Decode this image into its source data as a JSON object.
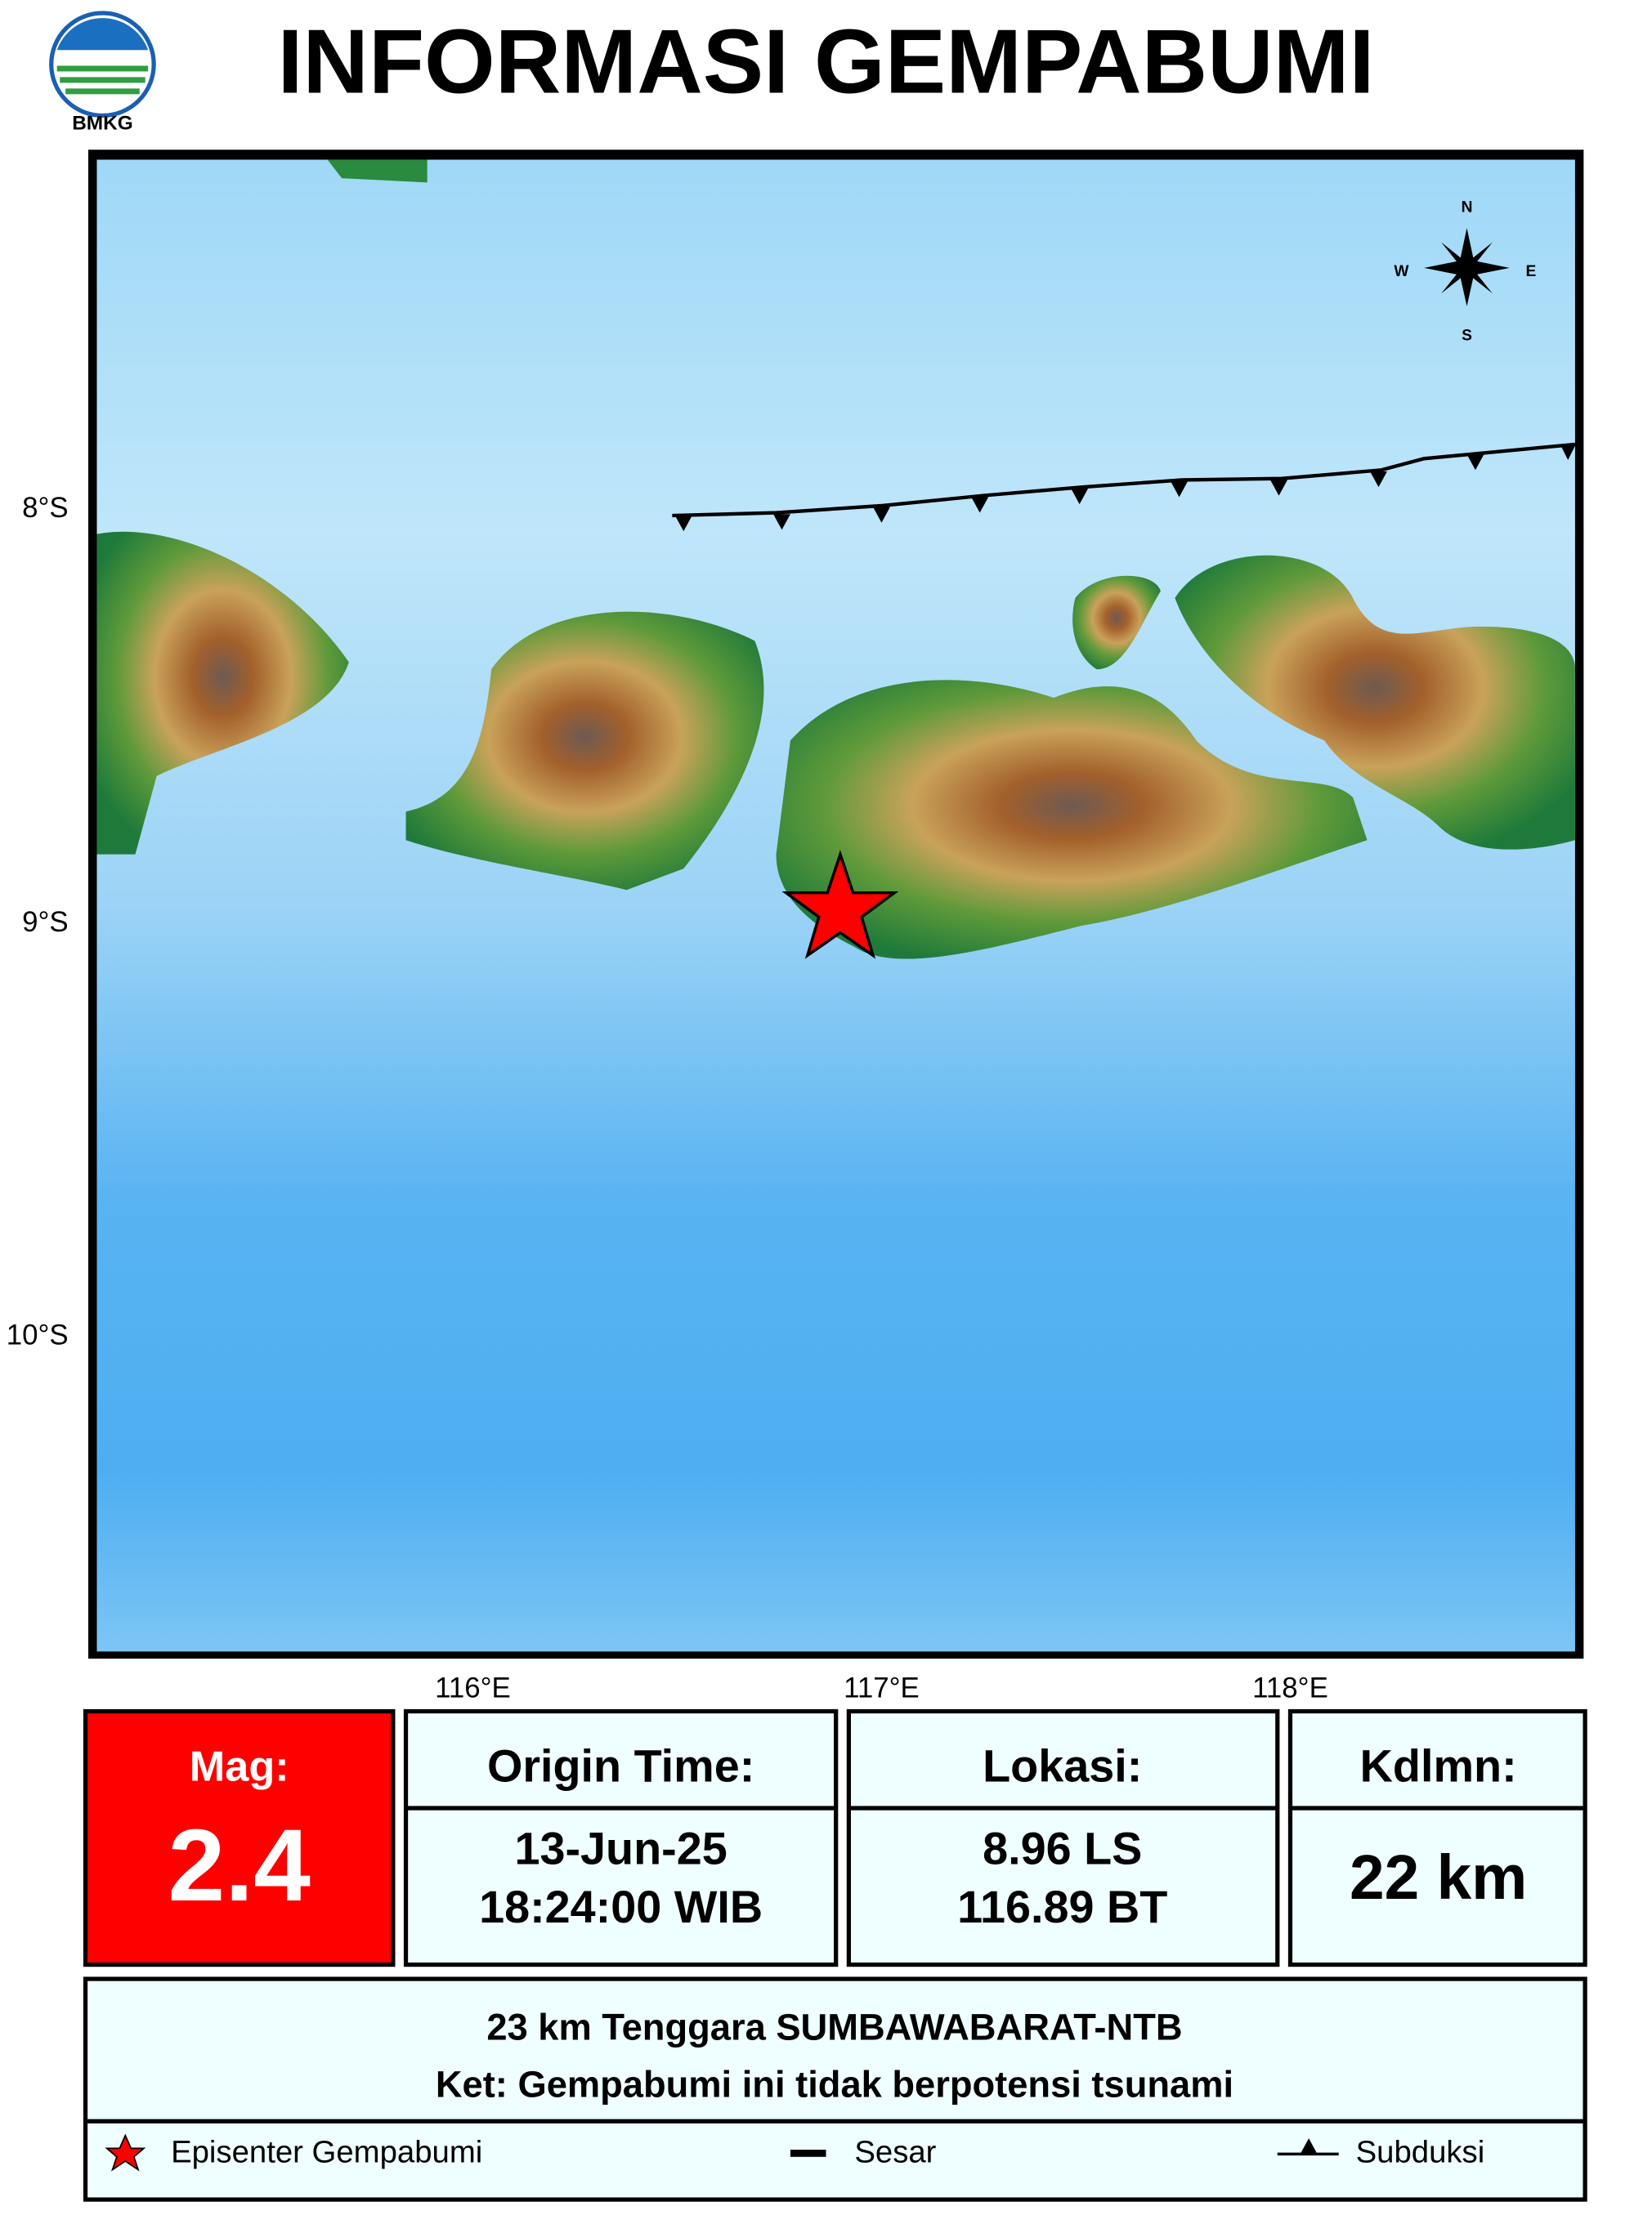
{
  "header": {
    "logo_text": "BMKG",
    "title": "INFORMASI GEMPABUMI"
  },
  "map": {
    "lat_labels": [
      "8°S",
      "9°S",
      "10°S"
    ],
    "lon_labels": [
      "116°E",
      "117°E",
      "118°E"
    ],
    "compass": {
      "n": "N",
      "e": "E",
      "s": "S",
      "w": "W"
    }
  },
  "info": {
    "mag_label": "Mag:",
    "mag_value": "2.4",
    "origin_label": "Origin Time:",
    "date": "13-Jun-25",
    "time": "18:24:00 WIB",
    "location_label": "Lokasi:",
    "latitude": "8.96 LS",
    "longitude": "116.89 BT",
    "depth_label": "Kdlmn:",
    "depth": "22 km"
  },
  "description": {
    "place": "23 km Tenggara SUMBAWABARAT-NTB",
    "note": "Ket: Gempabumi ini tidak berpotensi tsunami"
  },
  "legend": {
    "epicenter": "Episenter Gempabumi",
    "fault": "Sesar",
    "subduction": "Subduksi"
  }
}
